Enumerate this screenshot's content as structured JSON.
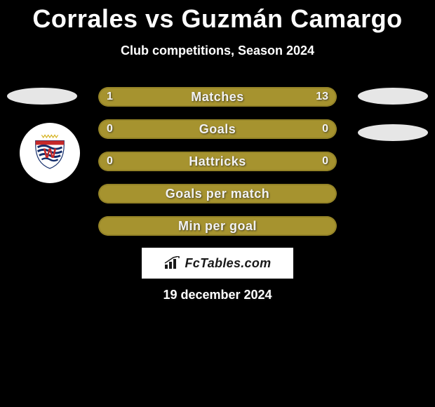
{
  "title": "Corrales vs Guzmán Camargo",
  "subtitle": "Club competitions, Season 2024",
  "date": "19 december 2024",
  "brand": "FcTables.com",
  "colors": {
    "bar_fill": "#a6932f",
    "bar_border": "#948327",
    "bar_border_dark": "#7d6f22",
    "bg": "#000000"
  },
  "stats": [
    {
      "label": "Matches",
      "left_val": "1",
      "right_val": "13",
      "left_width_pct": 7,
      "right_width_pct": 93,
      "show_vals": true
    },
    {
      "label": "Goals",
      "left_val": "0",
      "right_val": "0",
      "left_width_pct": 50,
      "right_width_pct": 50,
      "show_vals": true
    },
    {
      "label": "Hattricks",
      "left_val": "0",
      "right_val": "0",
      "left_width_pct": 50,
      "right_width_pct": 50,
      "show_vals": true
    },
    {
      "label": "Goals per match",
      "left_val": "",
      "right_val": "",
      "left_width_pct": 50,
      "right_width_pct": 50,
      "show_vals": false
    },
    {
      "label": "Min per goal",
      "left_val": "",
      "right_val": "",
      "left_width_pct": 50,
      "right_width_pct": 50,
      "show_vals": false
    }
  ],
  "shield": {
    "stars_color": "#d4b018",
    "top_band": "#c62828",
    "wing_color": "#132d6b",
    "w_color": "#c62828"
  }
}
